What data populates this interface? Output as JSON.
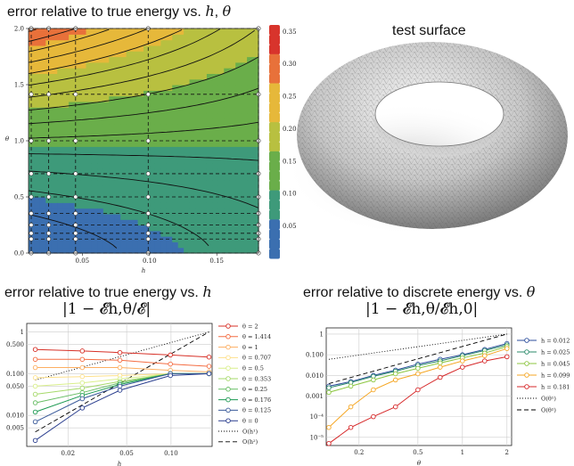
{
  "titles": {
    "contour": [
      "error relative to true energy vs. ",
      "h",
      ", ",
      "θ"
    ],
    "surface": "test surface",
    "plot_h": [
      "error relative to true energy vs. ",
      "h"
    ],
    "plot_theta": [
      "error relative to discrete energy vs. ",
      "θ"
    ],
    "formula_h": "|1 − 𝓔h,θ/𝓔|",
    "formula_theta": "|1 − 𝓔h,θ/𝓔h,0|"
  },
  "chart_data": [
    {
      "type": "heatmap",
      "xlabel": "h",
      "ylabel": "θ",
      "xlim": [
        0.01,
        0.181
      ],
      "ylim": [
        0,
        2.0
      ],
      "xticks": [
        "0.05",
        "0.10",
        "0.15"
      ],
      "yticks": [
        "0.0",
        "0.5",
        "1.0",
        "1.5",
        "2.0"
      ],
      "colorbar_ticks": [
        "0.05",
        "0.10",
        "0.15",
        "0.20",
        "0.25",
        "0.30",
        "0.35"
      ],
      "sample_h": [
        0.012,
        0.025,
        0.045,
        0.099,
        0.181
      ],
      "sample_theta": [
        0,
        0.125,
        0.176,
        0.25,
        0.353,
        0.5,
        0.707,
        1,
        1.414,
        2
      ]
    },
    {
      "type": "line",
      "xlabel": "h",
      "yscale": "log",
      "xscale": "log",
      "x": [
        0.012,
        0.025,
        0.045,
        0.099,
        0.181
      ],
      "xticks": [
        "0.02",
        "0.05",
        "0.10"
      ],
      "yticks": [
        "0.005",
        "0.010",
        "0.050",
        "0.100",
        "0.500",
        "1"
      ],
      "series": [
        {
          "name": "θ = 2",
          "color": "#d73027",
          "values": [
            0.38,
            0.35,
            0.32,
            0.28,
            0.25
          ]
        },
        {
          "name": "θ = 1.414",
          "color": "#f46d43",
          "values": [
            0.22,
            0.22,
            0.21,
            0.17,
            0.15
          ]
        },
        {
          "name": "θ = 1",
          "color": "#fdae61",
          "values": [
            0.14,
            0.14,
            0.14,
            0.12,
            0.11
          ]
        },
        {
          "name": "θ = 0.707",
          "color": "#fee08b",
          "values": [
            0.08,
            0.085,
            0.09,
            0.1,
            0.1
          ]
        },
        {
          "name": "θ = 0.5",
          "color": "#d9ef8b",
          "values": [
            0.05,
            0.06,
            0.075,
            0.1,
            0.1
          ]
        },
        {
          "name": "θ = 0.353",
          "color": "#a6d96a",
          "values": [
            0.032,
            0.045,
            0.065,
            0.1,
            0.1
          ]
        },
        {
          "name": "θ = 0.25",
          "color": "#66bd63",
          "values": [
            0.02,
            0.035,
            0.06,
            0.1,
            0.1
          ]
        },
        {
          "name": "θ = 0.176",
          "color": "#1a9850",
          "values": [
            0.012,
            0.03,
            0.055,
            0.1,
            0.1
          ]
        },
        {
          "name": "θ = 0.125",
          "color": "#3a5a9a",
          "values": [
            0.007,
            0.025,
            0.05,
            0.1,
            0.1
          ]
        },
        {
          "name": "θ = 0",
          "color": "#2b3f8f",
          "values": [
            0.0025,
            0.015,
            0.04,
            0.09,
            0.1
          ]
        }
      ],
      "reference": [
        {
          "name": "O(h¹)",
          "dash": "1,2",
          "from": [
            0.012,
            0.07
          ],
          "to": [
            0.181,
            1.0
          ]
        },
        {
          "name": "O(h²)",
          "dash": "5,3",
          "from": [
            0.012,
            0.004
          ],
          "to": [
            0.181,
            1.0
          ]
        }
      ]
    },
    {
      "type": "line",
      "xlabel": "θ",
      "yscale": "log",
      "xscale": "log",
      "x": [
        0.125,
        0.176,
        0.25,
        0.353,
        0.5,
        0.707,
        1,
        1.414,
        2
      ],
      "xticks": [
        "0.2",
        "0.5",
        "1",
        "2"
      ],
      "yticks": [
        "10⁻⁵",
        "10⁻⁴",
        "0.001",
        "0.010",
        "0.100",
        "1"
      ],
      "series": [
        {
          "name": "h = 0.012",
          "color": "#2b4c9b",
          "values": [
            0.003,
            0.005,
            0.01,
            0.018,
            0.035,
            0.06,
            0.1,
            0.18,
            0.35
          ]
        },
        {
          "name": "h = 0.025",
          "color": "#2a8a6a",
          "values": [
            0.0025,
            0.0045,
            0.009,
            0.016,
            0.03,
            0.05,
            0.09,
            0.16,
            0.3
          ]
        },
        {
          "name": "h = 0.045",
          "color": "#8cc63f",
          "values": [
            0.0015,
            0.003,
            0.006,
            0.012,
            0.022,
            0.04,
            0.07,
            0.12,
            0.25
          ]
        },
        {
          "name": "h = 0.099",
          "color": "#f5a623",
          "values": [
            3e-05,
            0.0003,
            0.002,
            0.006,
            0.012,
            0.025,
            0.05,
            0.09,
            0.2
          ]
        },
        {
          "name": "h = 0.181",
          "color": "#d62728",
          "values": [
            5e-06,
            3e-05,
            0.0001,
            0.0003,
            0.002,
            0.008,
            0.025,
            0.05,
            0.08
          ]
        }
      ],
      "reference": [
        {
          "name": "O(θ¹)",
          "dash": "1,2",
          "from": [
            0.125,
            0.06
          ],
          "to": [
            2,
            1.0
          ]
        },
        {
          "name": "O(θ²)",
          "dash": "5,3",
          "from": [
            0.125,
            0.004
          ],
          "to": [
            2,
            1.0
          ]
        }
      ]
    }
  ]
}
